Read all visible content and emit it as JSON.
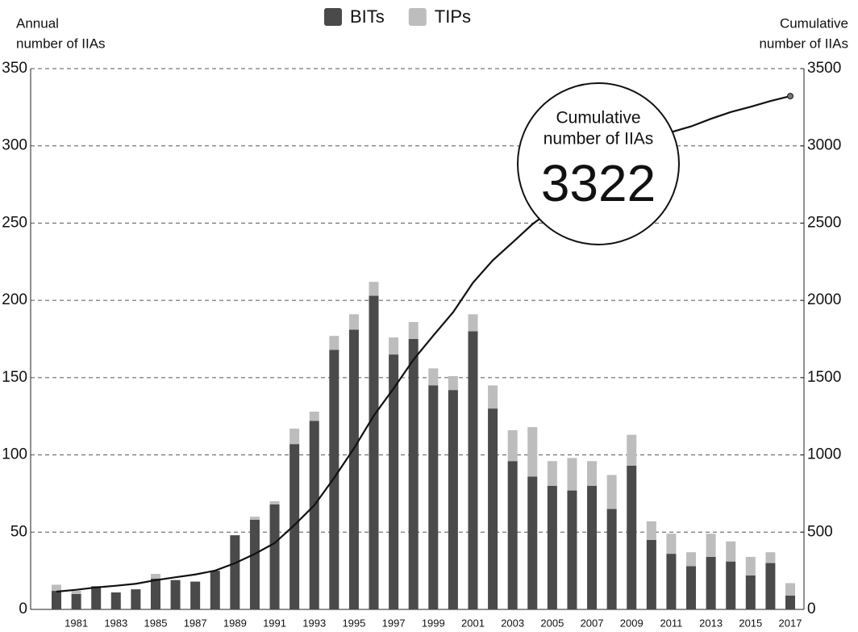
{
  "chart_data": {
    "type": "bar",
    "stacked": true,
    "ylabel": [
      "Annual",
      "number of IIAs"
    ],
    "y2label": [
      "Cumulative",
      "number of IIAs"
    ],
    "annotation": {
      "label": [
        "Cumulative",
        "number of IIAs"
      ],
      "value": 3322
    },
    "categories": [
      null,
      "1981",
      null,
      "1983",
      null,
      "1985",
      null,
      "1987",
      null,
      "1989",
      null,
      "1991",
      null,
      "1993",
      null,
      "1995",
      null,
      "1997",
      null,
      "1999",
      null,
      "2001",
      null,
      "2003",
      null,
      "2005",
      null,
      "2007",
      null,
      "2009",
      null,
      "2011",
      null,
      "2013",
      null,
      "2015",
      null,
      "2017"
    ],
    "series": [
      {
        "name": "BITs",
        "color": "#4a4a4a",
        "values": [
          12,
          10,
          15,
          11,
          13,
          20,
          19,
          18,
          25,
          48,
          58,
          68,
          107,
          122,
          168,
          181,
          203,
          165,
          175,
          145,
          142,
          180,
          130,
          96,
          86,
          80,
          77,
          80,
          65,
          93,
          45,
          36,
          28,
          34,
          31,
          22,
          30,
          9
        ]
      },
      {
        "name": "TIPs",
        "color": "#bdbdbd",
        "values": [
          4,
          2,
          0,
          0,
          0,
          3,
          0,
          0,
          0,
          0,
          2,
          2,
          10,
          6,
          9,
          10,
          9,
          11,
          11,
          11,
          9,
          11,
          15,
          20,
          32,
          16,
          21,
          16,
          22,
          20,
          12,
          13,
          9,
          15,
          13,
          12,
          7,
          8
        ]
      },
      {
        "name": "Cumulative number of IIAs",
        "type": "line",
        "axis": "y2",
        "color": "#111111",
        "values": [
          115,
          127,
          142,
          153,
          166,
          189,
          208,
          226,
          251,
          299,
          359,
          429,
          546,
          674,
          851,
          1042,
          1254,
          1430,
          1616,
          1772,
          1923,
          2114,
          2259,
          2375,
          2493,
          2589,
          2687,
          2783,
          2870,
          2983,
          3040,
          3089,
          3126,
          3175,
          3219,
          3253,
          3290,
          3322
        ]
      }
    ],
    "ylim": [
      0,
      350
    ],
    "yticks": [
      0,
      50,
      100,
      150,
      200,
      250,
      300,
      350
    ],
    "y2lim": [
      0,
      3500
    ],
    "y2ticks": [
      0,
      500,
      1000,
      1500,
      2000,
      2500,
      3000,
      3500
    ],
    "grid": true,
    "legend": "top"
  }
}
